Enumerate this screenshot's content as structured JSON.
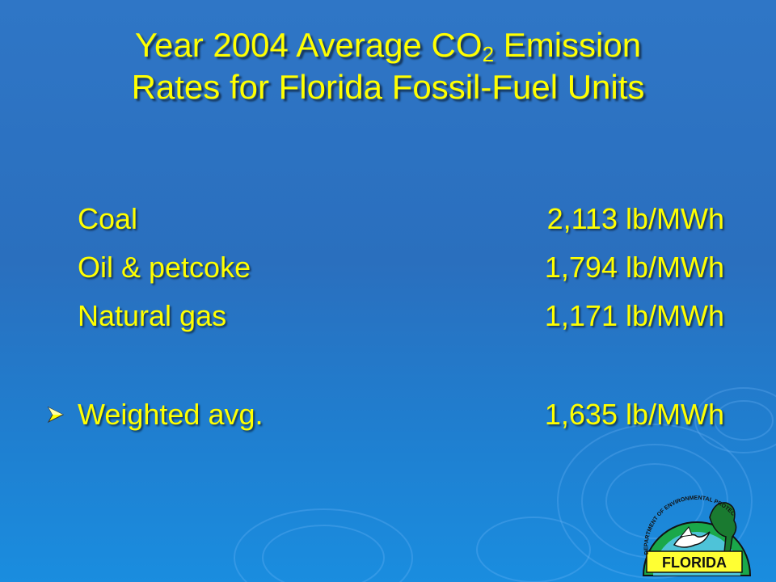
{
  "slide": {
    "title_part1": "Year 2004 Average CO",
    "title_subscript": "2",
    "title_part2": " Emission",
    "title_line2": "Rates for Florida Fossil-Fuel Units"
  },
  "rows": [
    {
      "label": "Coal",
      "value": "2,113 lb/MWh"
    },
    {
      "label": "Oil & petcoke",
      "value": "1,794 lb/MWh"
    },
    {
      "label": "Natural gas",
      "value": "1,171 lb/MWh"
    }
  ],
  "summary_row": {
    "label": "Weighted avg.",
    "value": "1,635 lb/MWh"
  },
  "logo": {
    "arc_text": "DEPARTMENT OF ENVIRONMENTAL PROTECTION",
    "name": "FLORIDA",
    "icon": "florida-dep-logo-icon"
  },
  "colors": {
    "background": "#2a6fbe",
    "text": "#ffff00",
    "bullet": "#ffff00"
  }
}
